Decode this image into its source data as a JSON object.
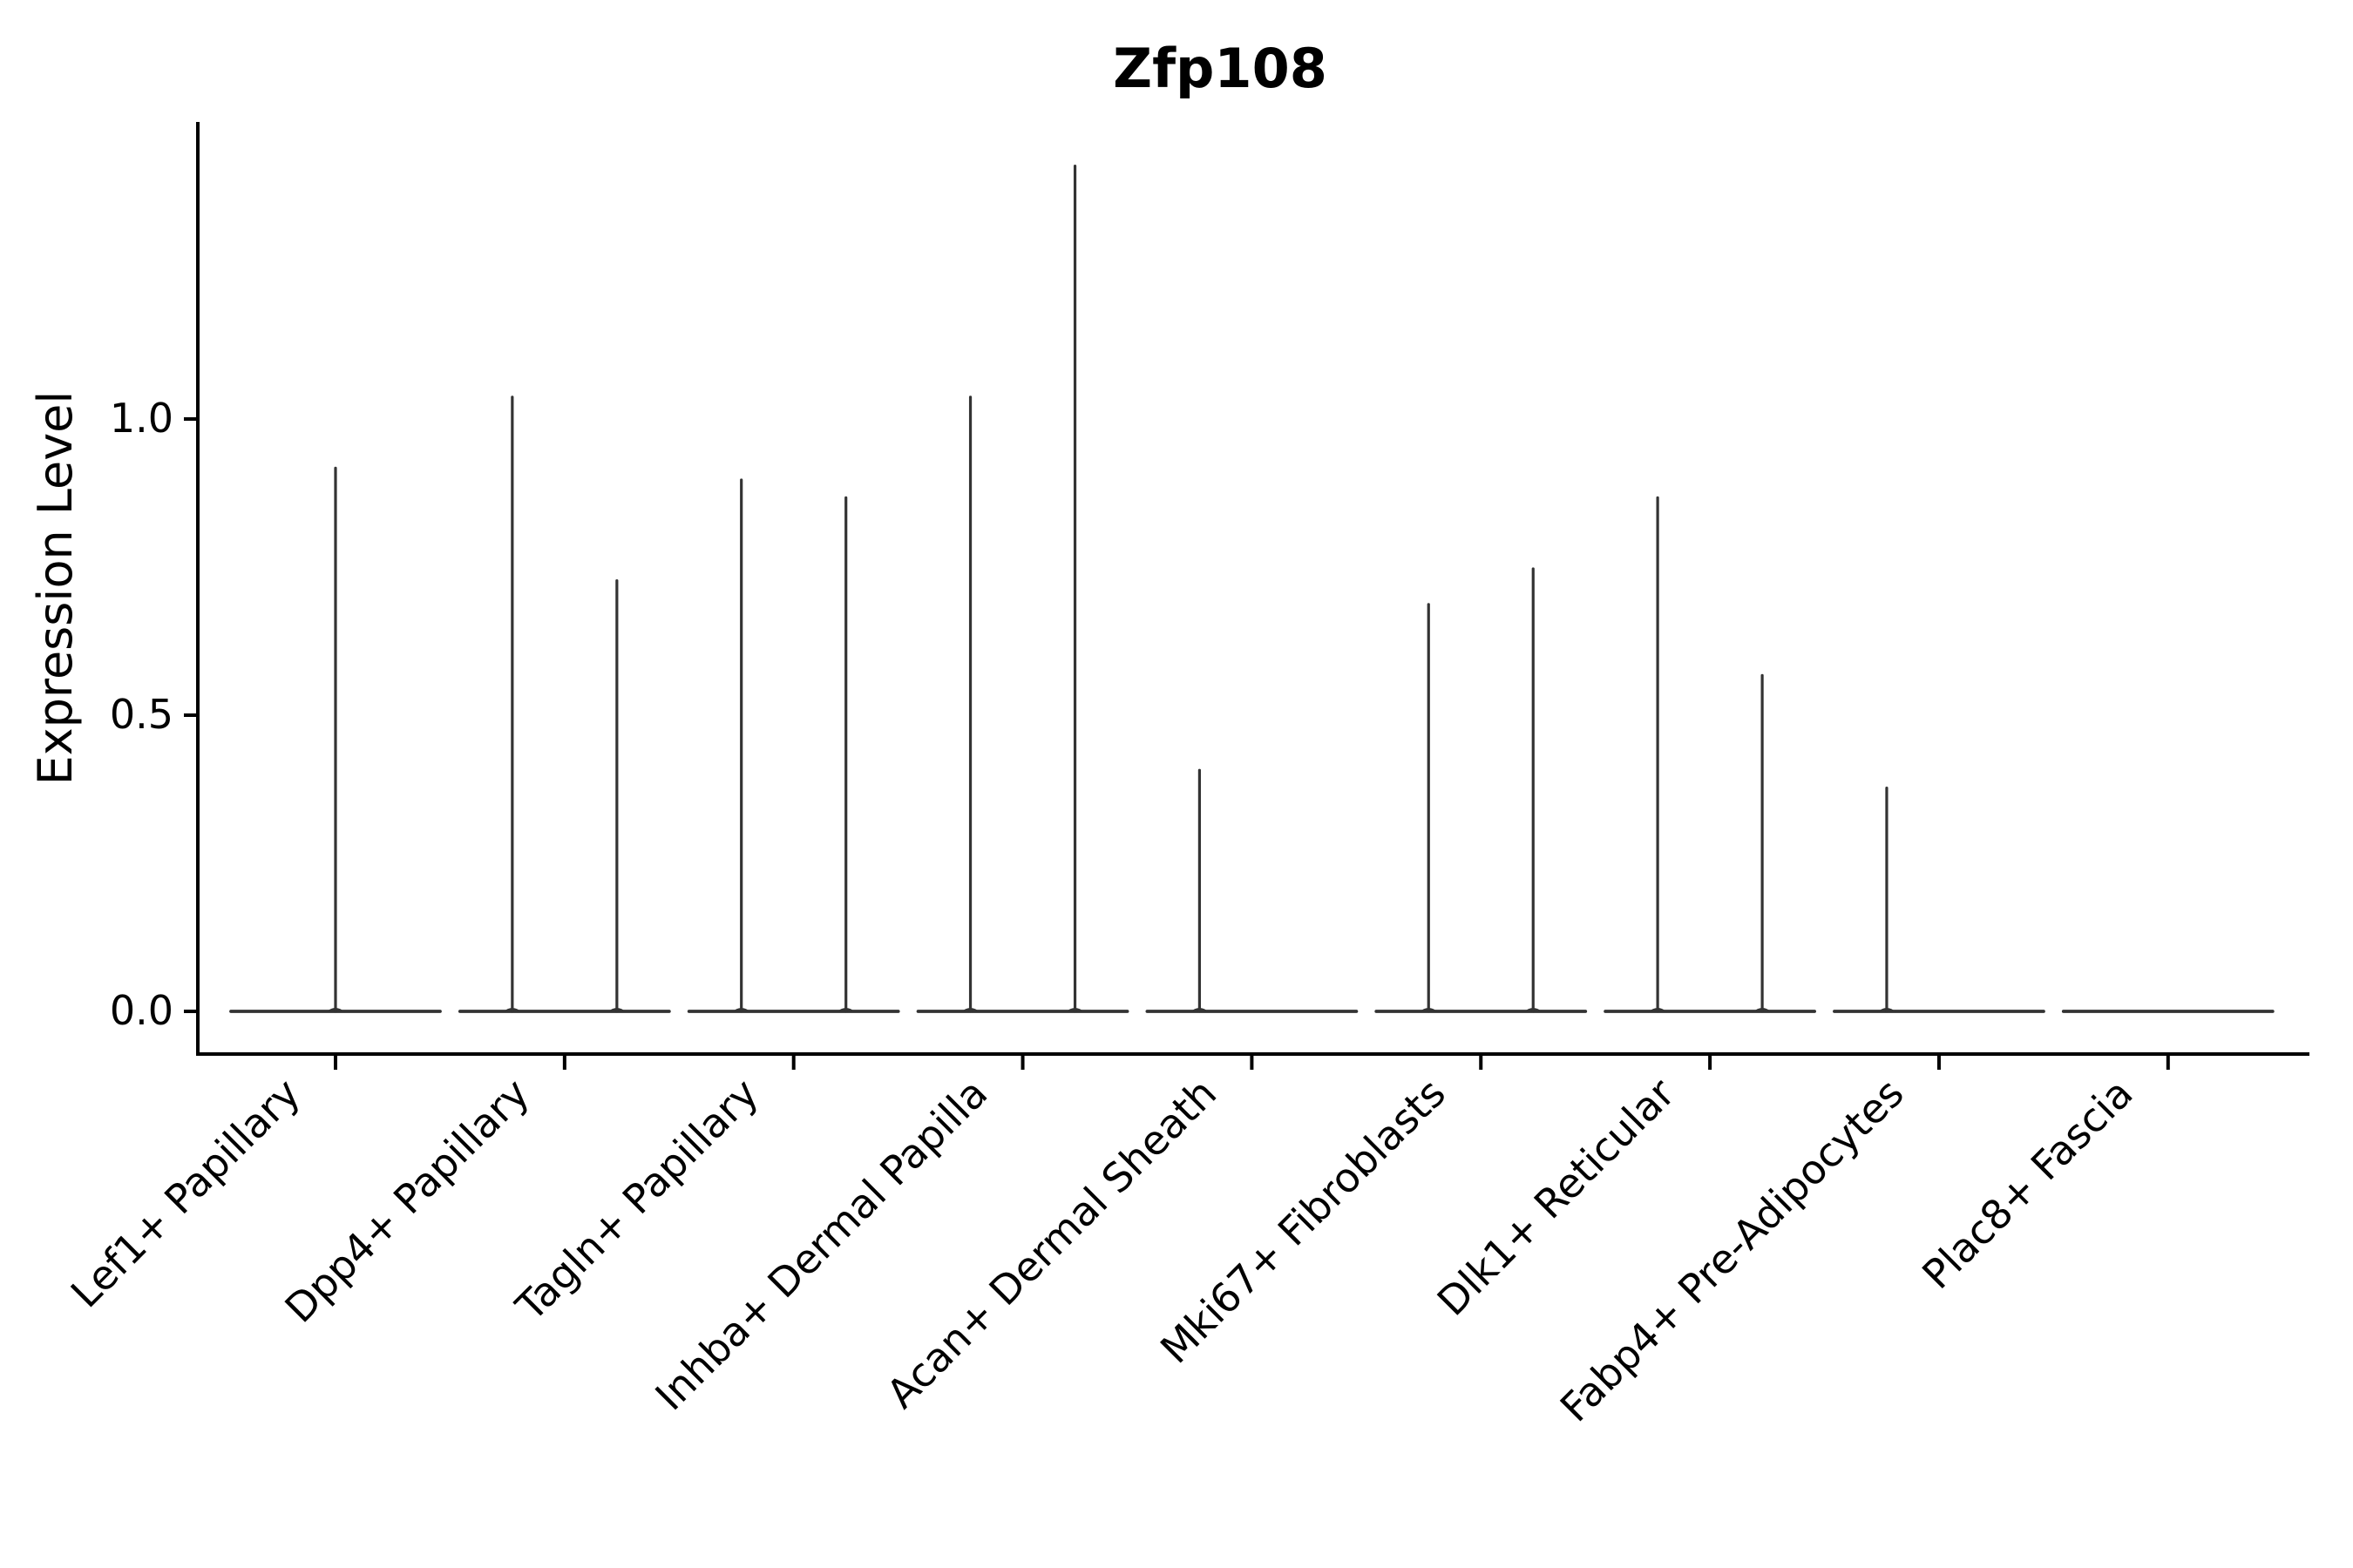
{
  "chart_data": {
    "type": "violin",
    "title": "Zfp108",
    "ylabel": "Expression Level",
    "xlabel": "",
    "ylim": [
      -0.07,
      1.5
    ],
    "grid": false,
    "legend_position": "none",
    "yticks": [
      {
        "value": 0.0,
        "label": "0.0"
      },
      {
        "value": 0.5,
        "label": "0.5"
      },
      {
        "value": 1.0,
        "label": "1.0"
      }
    ],
    "categories": [
      "Lef1+ Papillary",
      "Dpp4+ Papillary",
      "Tagln+ Papillary",
      "Inhba+ Dermal Papilla",
      "Acan+ Dermal Sheath",
      "Mki67+ Fibroblasts",
      "Dlk1+ Reticular",
      "Fabp4+ Pre-Adipocytes",
      "Plac8+ Fascia"
    ],
    "baseline_value": 0.0,
    "violins": [
      {
        "category": "Lef1+ Papillary",
        "spikes": [
          {
            "pos": "center",
            "value": 0.92
          }
        ]
      },
      {
        "category": "Dpp4+ Papillary",
        "spikes": [
          {
            "pos": "left",
            "value": 1.04
          },
          {
            "pos": "right",
            "value": 0.73
          }
        ]
      },
      {
        "category": "Tagln+ Papillary",
        "spikes": [
          {
            "pos": "left",
            "value": 0.9
          },
          {
            "pos": "right",
            "value": 0.87
          }
        ]
      },
      {
        "category": "Inhba+ Dermal Papilla",
        "spikes": [
          {
            "pos": "left",
            "value": 1.04
          },
          {
            "pos": "right",
            "value": 1.43
          }
        ]
      },
      {
        "category": "Acan+ Dermal Sheath",
        "spikes": [
          {
            "pos": "left",
            "value": 0.41
          }
        ]
      },
      {
        "category": "Mki67+ Fibroblasts",
        "spikes": [
          {
            "pos": "left",
            "value": 0.69
          },
          {
            "pos": "right",
            "value": 0.75
          }
        ]
      },
      {
        "category": "Dlk1+ Reticular",
        "spikes": [
          {
            "pos": "left",
            "value": 0.87
          },
          {
            "pos": "right",
            "value": 0.57
          }
        ]
      },
      {
        "category": "Fabp4+ Pre-Adipocytes",
        "spikes": [
          {
            "pos": "left",
            "value": 0.38
          }
        ]
      },
      {
        "category": "Plac8+ Fascia",
        "spikes": []
      }
    ],
    "colors": {
      "violin": "#333333",
      "axis": "#000000",
      "text": "#000000",
      "background": "#ffffff"
    }
  }
}
